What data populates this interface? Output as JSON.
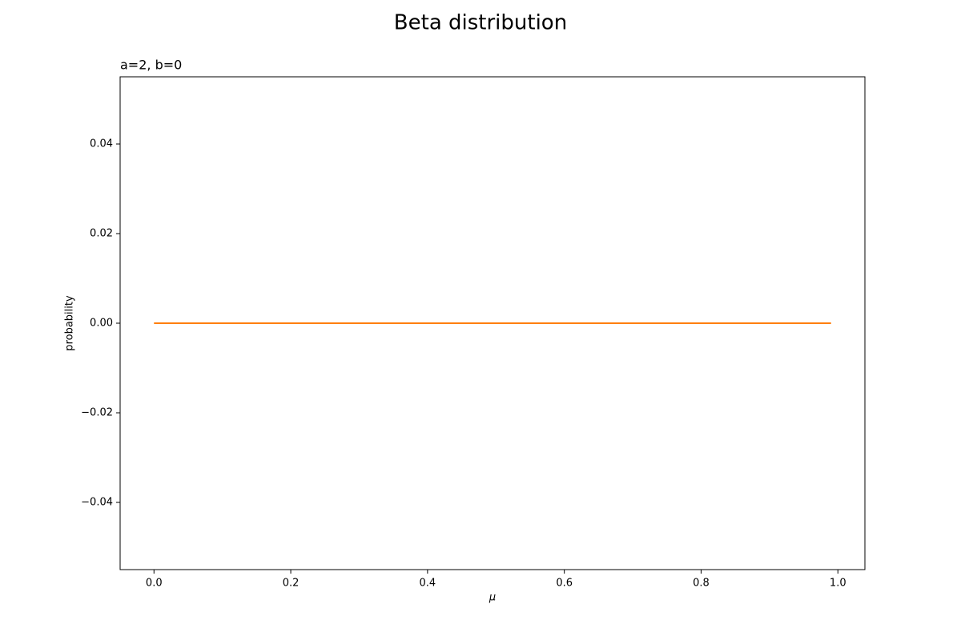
{
  "chart_data": {
    "type": "line",
    "title": "Beta distribution",
    "subtitle": "a=2, b=0",
    "xlabel": "μ",
    "ylabel": "probability",
    "x": [
      0,
      0.99
    ],
    "series": [
      {
        "color": "#ff7f0e",
        "values": [
          0,
          0
        ]
      }
    ],
    "xlim": [
      -0.0495,
      1.0395
    ],
    "ylim": [
      -0.055,
      0.055
    ],
    "xticks": [
      {
        "value": 0,
        "label": "0.0"
      },
      {
        "value": 0.2,
        "label": "0.2"
      },
      {
        "value": 0.4,
        "label": "0.4"
      },
      {
        "value": 0.6,
        "label": "0.6"
      },
      {
        "value": 0.8,
        "label": "0.8"
      },
      {
        "value": 1,
        "label": "1.0"
      }
    ],
    "yticks": [
      {
        "value": -0.04,
        "label": "−0.04"
      },
      {
        "value": -0.02,
        "label": "−0.02"
      },
      {
        "value": 0,
        "label": "0.00"
      },
      {
        "value": 0.02,
        "label": "0.02"
      },
      {
        "value": 0.04,
        "label": "0.04"
      }
    ]
  }
}
